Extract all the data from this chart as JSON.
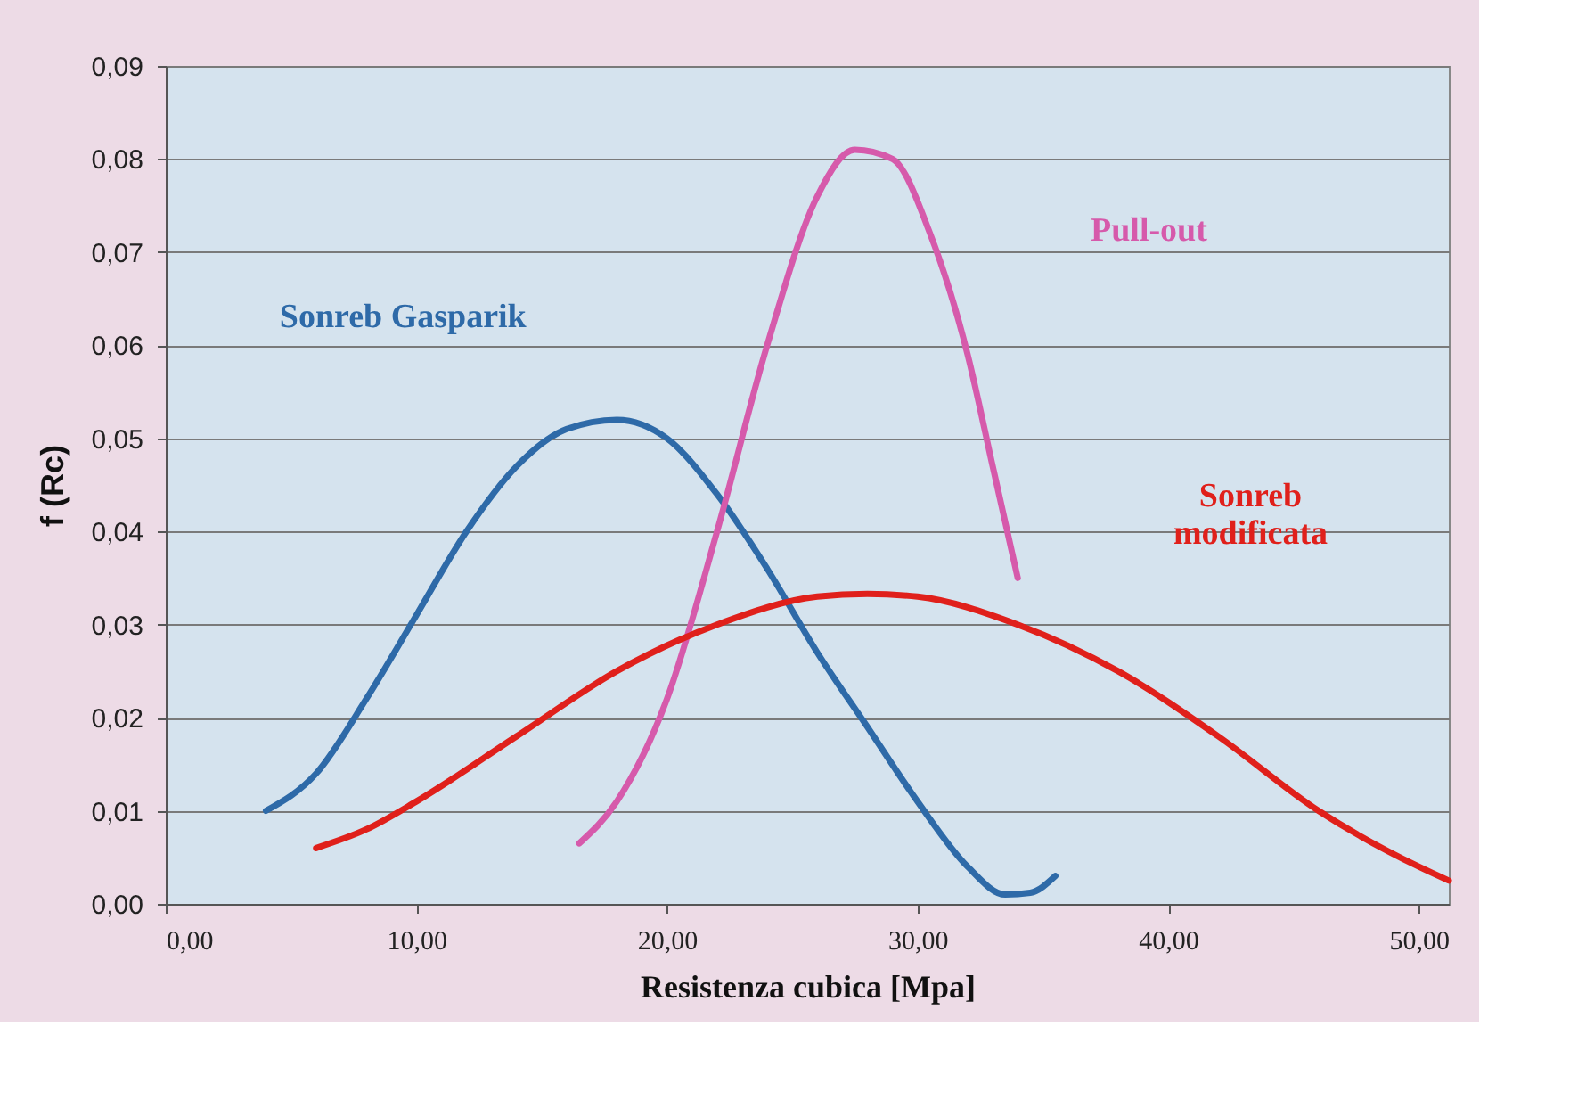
{
  "chart_data": {
    "type": "line",
    "xlabel": "Resistenza cubica [Mpa]",
    "ylabel": "f  (Rc)",
    "xlim": [
      0,
      51.2
    ],
    "xticks": [
      {
        "value": 0,
        "label": "0,00"
      },
      {
        "value": 10,
        "label": "10,00"
      },
      {
        "value": 20,
        "label": "20,00"
      },
      {
        "value": 30,
        "label": "30,00"
      },
      {
        "value": 40,
        "label": "40,00"
      },
      {
        "value": 50,
        "label": "50,00"
      }
    ],
    "ylim": [
      0,
      0.09
    ],
    "yticks": [
      {
        "value": 0,
        "label": "0,00"
      },
      {
        "value": 0.01,
        "label": "0,01"
      },
      {
        "value": 0.02,
        "label": "0,02"
      },
      {
        "value": 0.03,
        "label": "0,03"
      },
      {
        "value": 0.04,
        "label": "0,04"
      },
      {
        "value": 0.05,
        "label": "0,05"
      },
      {
        "value": 0.06,
        "label": "0,06"
      },
      {
        "value": 0.07,
        "label": "0,07"
      },
      {
        "value": 0.08,
        "label": "0,08"
      },
      {
        "value": 0.09,
        "label": "0,09"
      }
    ],
    "grid": "y",
    "marker": "none",
    "line_style": "solid",
    "series": [
      {
        "name": "Sonreb Gasparik",
        "color": "#2e6aa8",
        "x": [
          4,
          6,
          8,
          10,
          12,
          14,
          16,
          18,
          20,
          22,
          24,
          26,
          28,
          30,
          32,
          33.5,
          34.5,
          35.5
        ],
        "values": [
          0.01,
          0.014,
          0.022,
          0.031,
          0.04,
          0.047,
          0.051,
          0.052,
          0.05,
          0.044,
          0.036,
          0.027,
          0.019,
          0.011,
          0.004,
          0.001,
          0.0012,
          0.003
        ]
      },
      {
        "name": "Pull-out",
        "color": "#d65aab",
        "x": [
          16.5,
          18,
          20,
          22,
          24,
          26,
          27.5,
          29,
          30.5,
          32,
          33,
          34
        ],
        "values": [
          0.0065,
          0.011,
          0.022,
          0.04,
          0.06,
          0.076,
          0.081,
          0.08,
          0.072,
          0.059,
          0.047,
          0.035
        ]
      },
      {
        "name": "Sonreb modificata",
        "color": "#e0201b",
        "x": [
          6,
          8,
          10,
          14,
          18,
          22,
          26,
          28,
          30,
          34,
          38,
          42,
          46,
          50,
          51.2
        ],
        "values": [
          0.006,
          0.008,
          0.011,
          0.018,
          0.025,
          0.03,
          0.033,
          0.0333,
          0.033,
          0.03,
          0.025,
          0.018,
          0.01,
          0.004,
          0.0025
        ]
      }
    ]
  }
}
